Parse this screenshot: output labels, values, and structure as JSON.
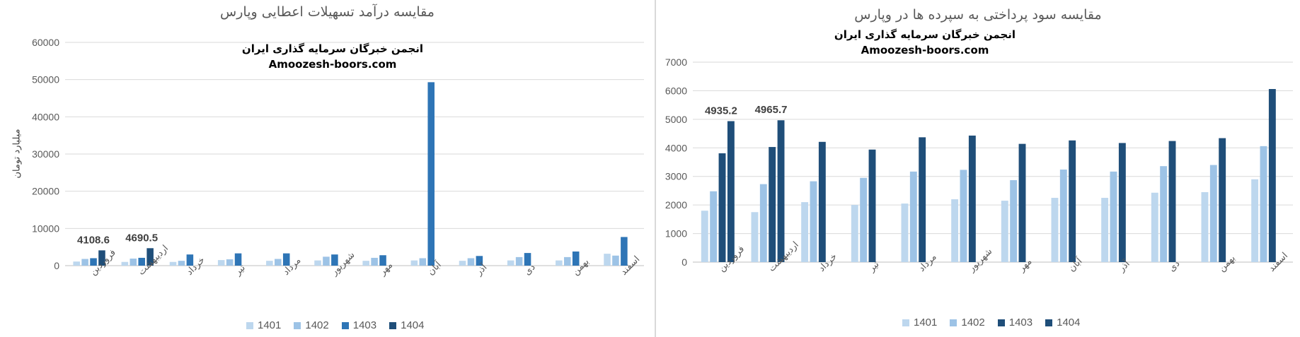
{
  "chart_data": [
    {
      "type": "bar",
      "title": "مقایسه درآمد تسهیلات اعطایی وپارس",
      "watermark": [
        "انجمن خبرگان سرمایه گذاری ایران",
        "Amoozesh-boors.com"
      ],
      "ylabel": "میلیارد تومان",
      "xlabel": "",
      "ylim": [
        0,
        60000
      ],
      "yticks": [
        0,
        10000,
        20000,
        30000,
        40000,
        50000,
        60000
      ],
      "categories": [
        "فروردین",
        "اردیبهشت",
        "خرداد",
        "تیر",
        "مرداد",
        "شهریور",
        "مهر",
        "آبان",
        "آذر",
        "دی",
        "بهمن",
        "اسفند"
      ],
      "series": [
        {
          "name": "1401",
          "color": "#bdd7ee",
          "values": [
            1100,
            1000,
            1000,
            1500,
            1300,
            1400,
            1300,
            1400,
            1300,
            1400,
            1400,
            3200
          ]
        },
        {
          "name": "1402",
          "color": "#9dc3e6",
          "values": [
            1800,
            1900,
            1300,
            1700,
            1800,
            2400,
            2100,
            2000,
            2000,
            2300,
            2300,
            2700
          ]
        },
        {
          "name": "1403",
          "color": "#2e75b6",
          "values": [
            2000,
            2100,
            3000,
            3300,
            3300,
            3000,
            2800,
            49300,
            2600,
            3400,
            3800,
            7700
          ]
        },
        {
          "name": "1404",
          "color": "#1f4e79",
          "values": [
            4108.6,
            4690.5,
            null,
            null,
            null,
            null,
            null,
            null,
            null,
            null,
            null,
            null
          ]
        }
      ],
      "data_labels": [
        {
          "category": "فروردین",
          "series": "1404",
          "text": "4108.6"
        },
        {
          "category": "اردیبهشت",
          "series": "1404",
          "text": "4690.5"
        }
      ],
      "legend": "bottom",
      "grid": true
    },
    {
      "type": "bar",
      "title": "مقایسه سود پرداختی به سپرده ها در وپارس",
      "watermark": [
        "انجمن خبرگان سرمایه گذاری ایران",
        "Amoozesh-boors.com"
      ],
      "ylabel": "",
      "xlabel": "",
      "ylim": [
        0,
        7000
      ],
      "yticks": [
        0,
        1000,
        2000,
        3000,
        4000,
        5000,
        6000,
        7000
      ],
      "categories": [
        "فروردین",
        "اردیبهشت",
        "خرداد",
        "تیر",
        "مرداد",
        "شهریور",
        "مهر",
        "آبان",
        "آذر",
        "دی",
        "بهمن",
        "اسفند"
      ],
      "series": [
        {
          "name": "1401",
          "color": "#bdd7ee",
          "values": [
            1800,
            1750,
            2100,
            2000,
            2050,
            2200,
            2150,
            2250,
            2250,
            2430,
            2450,
            2900
          ]
        },
        {
          "name": "1402",
          "color": "#9dc3e6",
          "values": [
            2480,
            2730,
            2830,
            2950,
            3170,
            3230,
            2870,
            3240,
            3170,
            3360,
            3400,
            4060
          ]
        },
        {
          "name": "1403",
          "color": "#1f4e79",
          "values": [
            3810,
            4030,
            4210,
            3940,
            4370,
            4430,
            4140,
            4260,
            4170,
            4240,
            4340,
            6060
          ]
        },
        {
          "name": "1404",
          "color": "#1f4e79",
          "values": [
            4935.2,
            4965.7,
            null,
            null,
            null,
            null,
            null,
            null,
            null,
            null,
            null,
            null
          ]
        }
      ],
      "data_labels": [
        {
          "category": "فروردین",
          "series": "1404",
          "text": "4935.2"
        },
        {
          "category": "اردیبهشت",
          "series": "1404",
          "text": "4965.7"
        }
      ],
      "legend": "bottom",
      "grid": true
    }
  ]
}
